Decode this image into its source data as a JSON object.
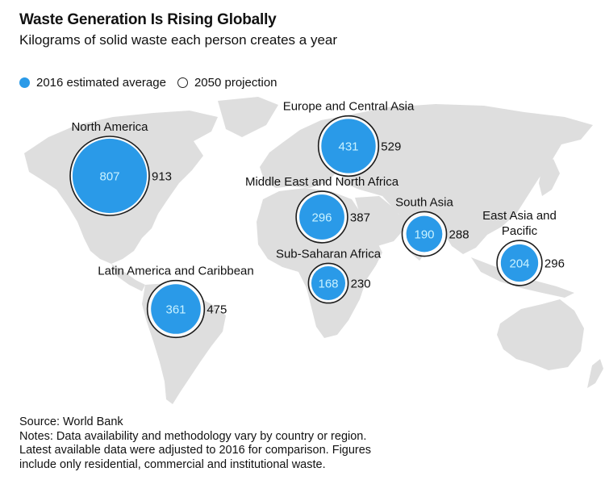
{
  "title": "Waste Generation Is Rising Globally",
  "subtitle": "Kilograms of solid waste each person creates a year",
  "legend": {
    "filled_label": "2016 estimated average",
    "hollow_label": "2050 projection"
  },
  "colors": {
    "bubble_fill": "#2a9ae8",
    "bubble_value_text": "#c9f2ff",
    "land": "#dedede",
    "ring": "#1c1c1c"
  },
  "chart_data": {
    "type": "bubble-map",
    "title": "Waste Generation Is Rising Globally",
    "subtitle": "Kilograms of solid waste each person creates a year",
    "unit": "kg per person per year",
    "series": [
      {
        "name": "2016 estimated average",
        "style": "filled"
      },
      {
        "name": "2050 projection",
        "style": "outline"
      }
    ],
    "regions": [
      {
        "name": "North America",
        "label_lines": [
          "North America"
        ],
        "v2016": 807,
        "v2050": 913
      },
      {
        "name": "Europe and Central Asia",
        "label_lines": [
          "Europe and Central Asia"
        ],
        "v2016": 431,
        "v2050": 529
      },
      {
        "name": "Middle East and North Africa",
        "label_lines": [
          "Middle East and North Africa"
        ],
        "v2016": 296,
        "v2050": 387
      },
      {
        "name": "South Asia",
        "label_lines": [
          "South Asia"
        ],
        "v2016": 190,
        "v2050": 288
      },
      {
        "name": "East Asia and Pacific",
        "label_lines": [
          "East Asia and",
          "Pacific"
        ],
        "v2016": 204,
        "v2050": 296
      },
      {
        "name": "Sub-Saharan Africa",
        "label_lines": [
          "Sub-Saharan Africa"
        ],
        "v2016": 168,
        "v2050": 230
      },
      {
        "name": "Latin America and Caribbean",
        "label_lines": [
          "Latin America and Caribbean"
        ],
        "v2016": 361,
        "v2050": 475
      }
    ]
  },
  "footer": {
    "source": "Source: World Bank",
    "notes": "Notes: Data availability and methodology vary by country or region. Latest available data were adjusted to 2016 for comparison. Figures include only residential, commercial and institutional waste."
  }
}
